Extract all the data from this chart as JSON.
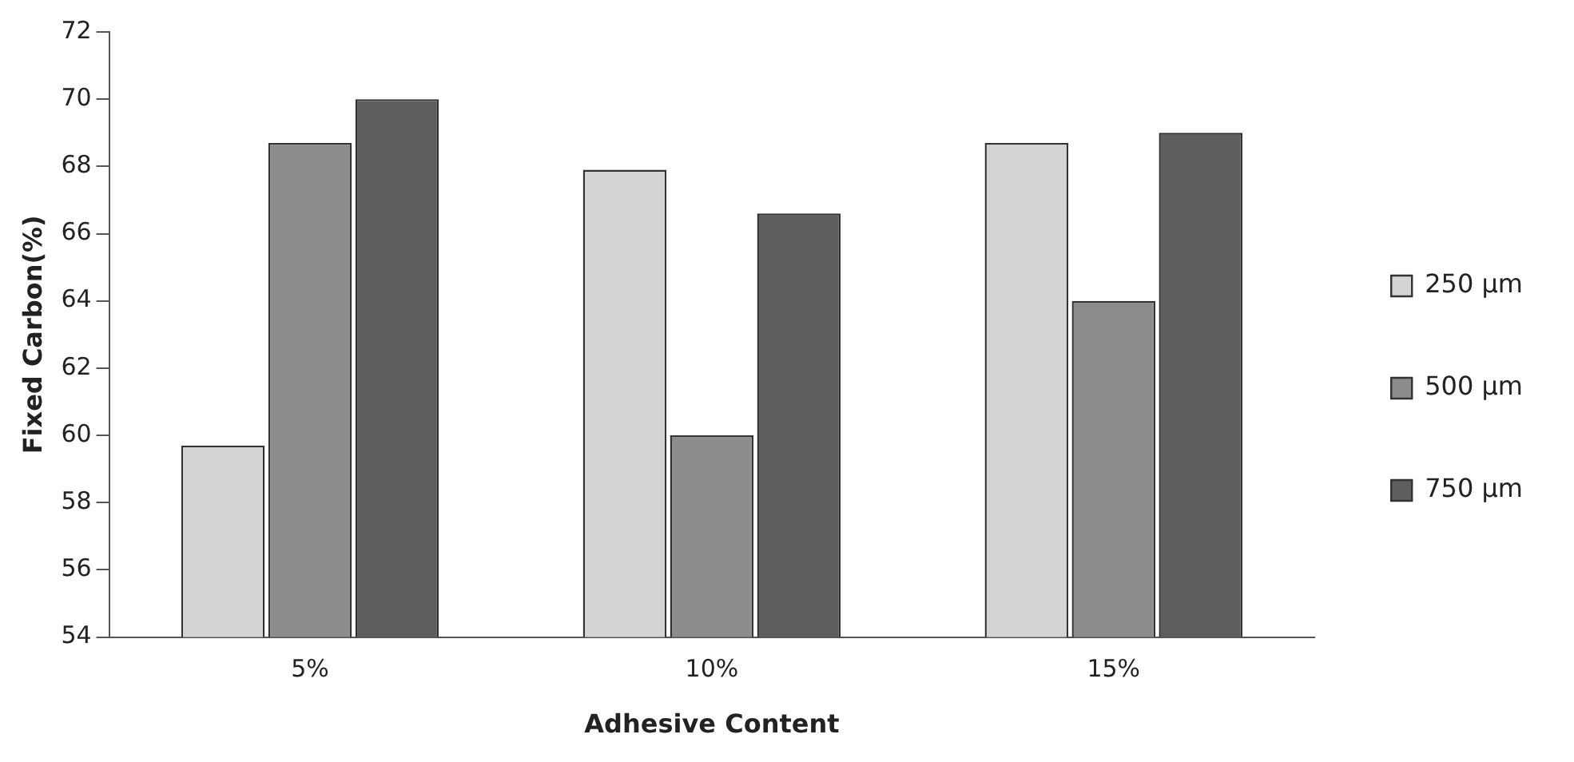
{
  "chart_data": {
    "type": "bar",
    "xlabel": "Adhesive Content",
    "ylabel": "Fixed Carbon(%)",
    "categories": [
      "5%",
      "10%",
      "15%"
    ],
    "series": [
      {
        "name": "250 µm",
        "color": "#d4d4d4",
        "values": [
          59.7,
          67.9,
          68.7
        ]
      },
      {
        "name": "500 µm",
        "color": "#8c8c8c",
        "values": [
          68.7,
          60.0,
          64.0
        ]
      },
      {
        "name": "750 µm",
        "color": "#5e5e5e",
        "values": [
          70.0,
          66.6,
          69.0
        ]
      }
    ],
    "ylim": [
      54,
      72
    ],
    "yticks": [
      54,
      56,
      58,
      60,
      62,
      64,
      66,
      68,
      70,
      72
    ],
    "legend": "right"
  }
}
